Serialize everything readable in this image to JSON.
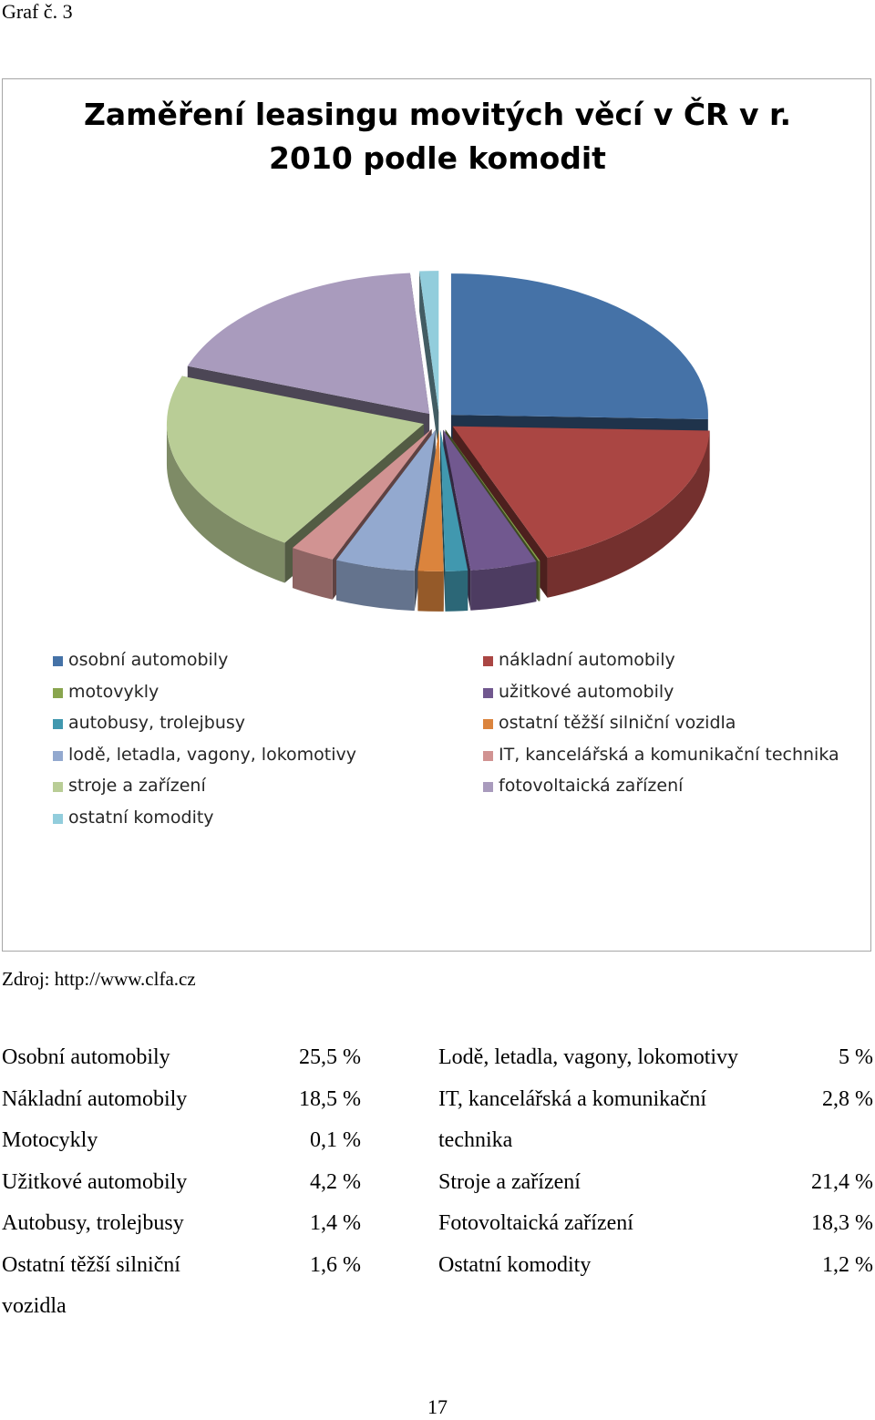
{
  "caption": "Graf č. 3",
  "source": "Zdroj: http://www.clfa.cz",
  "page_number": "17",
  "chart_data": {
    "type": "pie",
    "title_lines": [
      "Zaměření leasingu movitých věcí v ČR v r.",
      "2010 podle komodit"
    ],
    "unit": "%",
    "legend_position": "bottom",
    "legend": [
      {
        "label": "osobní automobily",
        "color": "#4572a7"
      },
      {
        "label": "nákladní automobily",
        "color": "#aa4643"
      },
      {
        "label": "motovykly",
        "color": "#89a54e"
      },
      {
        "label": "užitkové automobily",
        "color": "#71588f"
      },
      {
        "label": "autobusy, trolejbusy",
        "color": "#4198af"
      },
      {
        "label": "ostatní těžší silniční vozidla",
        "color": "#db843d"
      },
      {
        "label": "lodě, letadla, vagony, lokomotivy",
        "color": "#93a9cf"
      },
      {
        "label": "IT, kancelářská a komunikační technika",
        "color": "#d19392"
      },
      {
        "label": "stroje a zařízení",
        "color": "#b9cd96"
      },
      {
        "label": "fotovoltaická zařízení",
        "color": "#a99bbd"
      },
      {
        "label": "ostatní komodity",
        "color": "#92cddc"
      }
    ],
    "slices": [
      {
        "name": "osobní automobily",
        "value": 25.5,
        "color": "#4572a7"
      },
      {
        "name": "nákladní automobily",
        "value": 18.5,
        "color": "#aa4643"
      },
      {
        "name": "motovykly",
        "value": 0.1,
        "color": "#89a54e"
      },
      {
        "name": "užitkové automobily",
        "value": 4.2,
        "color": "#71588f"
      },
      {
        "name": "autobusy, trolejbusy",
        "value": 1.4,
        "color": "#4198af"
      },
      {
        "name": "ostatní těžší silniční vozidla",
        "value": 1.6,
        "color": "#db843d"
      },
      {
        "name": "lodě, letadla, vagony, lokomotivy",
        "value": 5,
        "color": "#93a9cf"
      },
      {
        "name": "IT, kancelářská a komunikační technika",
        "value": 2.8,
        "color": "#d19392"
      },
      {
        "name": "stroje a zařízení",
        "value": 21.4,
        "color": "#b9cd96"
      },
      {
        "name": "fotovoltaická zařízení",
        "value": 18.3,
        "color": "#a99bbd"
      },
      {
        "name": "ostatní komodity",
        "value": 1.2,
        "color": "#92cddc"
      }
    ]
  },
  "table": {
    "left": [
      {
        "label": "Osobní automobily",
        "value": "25,5 %"
      },
      {
        "label": "Nákladní automobily",
        "value": "18,5 %"
      },
      {
        "label": "Motocykly",
        "value": "0,1 %"
      },
      {
        "label": "Užitkové automobily",
        "value": "4,2 %"
      },
      {
        "label": "Autobusy, trolejbusy",
        "value": "1,4 %"
      },
      {
        "label": "Ostatní těžší silniční",
        "value": "1,6 %"
      },
      {
        "label": "vozidla",
        "value": ""
      }
    ],
    "right": [
      {
        "label": "Lodě, letadla, vagony, lokomotivy",
        "value": "5 %"
      },
      {
        "label": "IT,   kancelářská   a   komunikační",
        "value": "2,8 %"
      },
      {
        "label": "technika",
        "value": ""
      },
      {
        "label": "Stroje a zařízení",
        "value": "21,4 %"
      },
      {
        "label": "Fotovoltaická zařízení",
        "value": "18,3 %"
      },
      {
        "label": "Ostatní komodity",
        "value": "1,2 %"
      }
    ]
  }
}
